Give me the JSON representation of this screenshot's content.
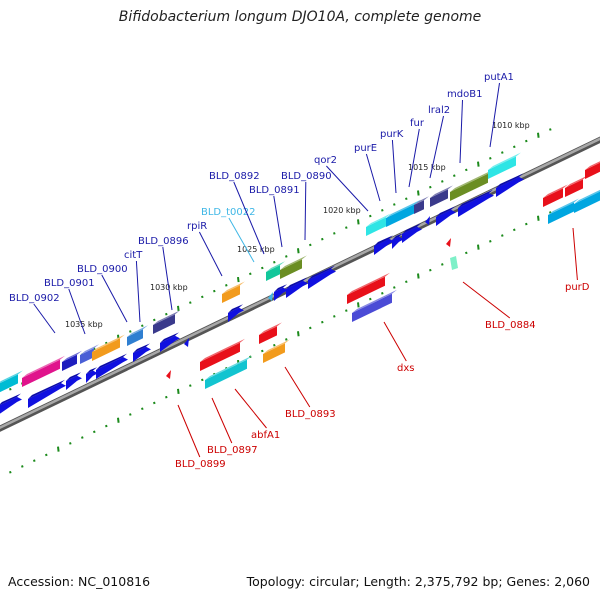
{
  "title": "Bifidobacterium longum DJO10A, complete genome",
  "footer": {
    "accession": "Accession: NC_010816",
    "topology": "Topology: circular; Length: 2,375,792 bp; Genes: 2,060"
  },
  "colors": {
    "upper_label": "#1a1aa8",
    "lower_label": "#cc0000",
    "trna_label": "#3fb7e6",
    "backbone": "#808080",
    "tick": "#1b8a1b"
  },
  "kbp_labels": [
    "1035 kbp",
    "1030 kbp",
    "1025 kbp",
    "1020 kbp",
    "1015 kbp",
    "1010 kbp"
  ],
  "upper_genes": [
    "BLD_0902",
    "BLD_0901",
    "BLD_0900",
    "citT",
    "BLD_0896",
    "rpiR",
    "BLD_t0022",
    "BLD_0892",
    "BLD_0891",
    "BLD_0890",
    "qor2",
    "purE",
    "purK",
    "fur",
    "lral2",
    "mdoB1",
    "putA1"
  ],
  "lower_genes": [
    "BLD_0899",
    "BLD_0897",
    "abfA1",
    "BLD_0893",
    "dxs",
    "BLD_0884",
    "purD"
  ]
}
